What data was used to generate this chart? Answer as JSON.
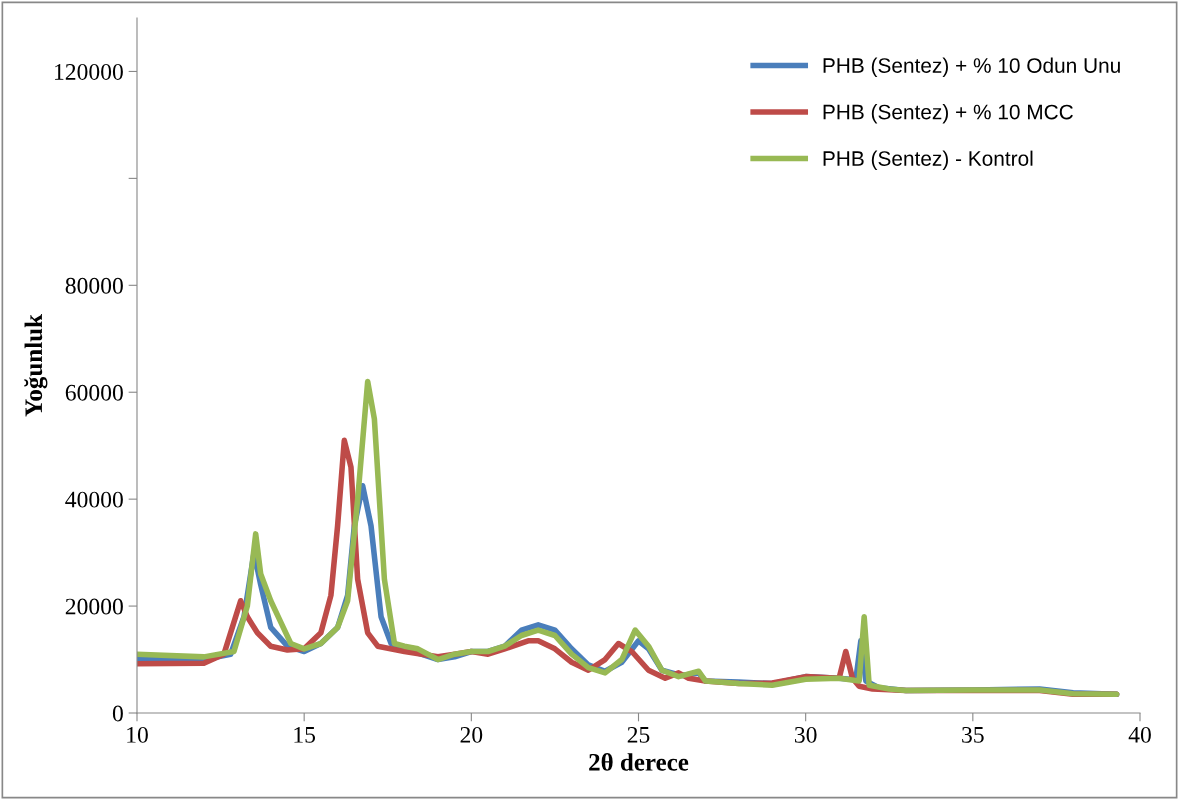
{
  "chart_data": {
    "type": "line",
    "xlabel": "2θ derece",
    "ylabel": "Yoğunluk",
    "xlim": [
      10,
      40
    ],
    "xticks": [
      10,
      15,
      20,
      25,
      30,
      35,
      40
    ],
    "ylim": [
      0,
      130000
    ],
    "yticks": [
      0,
      20000,
      40000,
      60000,
      80000,
      {
        "value": 100000,
        "label": null
      },
      120000
    ],
    "grid": false,
    "legend": "top right",
    "marker": "none",
    "line_style": "solid",
    "series": [
      {
        "name": "PHB (Sentez) + % 10 Odun Unu",
        "color": "#4a7ebb",
        "x": [
          10,
          12,
          12.8,
          13.2,
          13.5,
          13.7,
          14.0,
          14.5,
          15,
          15.5,
          16.0,
          16.3,
          16.5,
          16.75,
          17.0,
          17.3,
          17.6,
          18,
          18.5,
          19,
          19.5,
          20,
          20.5,
          21,
          21.5,
          22,
          22.5,
          23,
          23.5,
          24,
          24.5,
          25,
          25.3,
          25.7,
          26.3,
          26.8,
          27,
          28,
          29,
          30,
          31,
          31.5,
          31.65,
          31.8,
          32.2,
          33,
          35,
          37,
          38,
          39.3
        ],
        "values": [
          10000,
          10000,
          11000,
          18000,
          30000,
          24000,
          16000,
          12500,
          11500,
          13000,
          16000,
          22000,
          35000,
          42500,
          35000,
          18000,
          13000,
          12000,
          11000,
          10000,
          10500,
          11500,
          11500,
          12500,
          15500,
          16500,
          15500,
          12000,
          9000,
          7800,
          9500,
          13500,
          12000,
          8000,
          7000,
          7500,
          6000,
          5800,
          5500,
          6800,
          6500,
          6200,
          13500,
          6000,
          4700,
          4200,
          4300,
          4500,
          3800,
          3500
        ]
      },
      {
        "name": "PHB (Sentez) + % 10 MCC",
        "color": "#be4b48",
        "x": [
          10,
          12,
          12.6,
          12.9,
          13.1,
          13.3,
          13.6,
          14.0,
          14.5,
          15,
          15.5,
          15.8,
          16.0,
          16.2,
          16.4,
          16.6,
          16.9,
          17.2,
          18,
          19,
          19.5,
          20,
          20.5,
          21,
          21.7,
          22,
          22.5,
          23,
          23.5,
          24,
          24.4,
          24.8,
          25.3,
          25.8,
          26.2,
          26.5,
          27,
          28,
          29,
          30,
          31.0,
          31.2,
          31.4,
          31.6,
          32,
          33,
          35,
          37,
          38,
          39.3
        ],
        "values": [
          9200,
          9300,
          11000,
          17000,
          21000,
          18000,
          15000,
          12500,
          11800,
          12000,
          15000,
          22000,
          35000,
          51000,
          46000,
          25000,
          15000,
          12500,
          11500,
          10500,
          11000,
          11500,
          11000,
          12000,
          13500,
          13500,
          12000,
          9500,
          8000,
          10000,
          13000,
          11500,
          8000,
          6500,
          7500,
          6500,
          6000,
          5500,
          5600,
          6800,
          6500,
          11500,
          6500,
          5000,
          4500,
          4200,
          4200,
          4200,
          3500,
          3500
        ]
      },
      {
        "name": "PHB (Sentez) - Kontrol",
        "color": "#98b954",
        "x": [
          10,
          12,
          12.9,
          13.3,
          13.55,
          13.7,
          14.0,
          14.3,
          14.6,
          15,
          15.5,
          16.0,
          16.3,
          16.6,
          16.9,
          17.1,
          17.4,
          17.7,
          18,
          18.4,
          19,
          19.5,
          20,
          20.5,
          21,
          21.5,
          22,
          22.5,
          23,
          23.5,
          24,
          24.5,
          24.9,
          25.3,
          25.7,
          26.2,
          26.8,
          27.0,
          28,
          29,
          30,
          31,
          31.6,
          31.75,
          31.9,
          32.5,
          33,
          35,
          37,
          38,
          39.3
        ],
        "values": [
          11000,
          10500,
          11500,
          20000,
          33500,
          26000,
          21000,
          17000,
          13000,
          12000,
          13000,
          16000,
          21000,
          40000,
          62000,
          55000,
          25000,
          13000,
          12500,
          12000,
          10000,
          11000,
          11500,
          11500,
          12500,
          14500,
          15500,
          14500,
          11000,
          8500,
          7500,
          10000,
          15500,
          12500,
          8000,
          6800,
          7800,
          6000,
          5500,
          5200,
          6300,
          6500,
          6000,
          18000,
          5200,
          4500,
          4200,
          4300,
          4300,
          3600,
          3500
        ]
      }
    ]
  }
}
